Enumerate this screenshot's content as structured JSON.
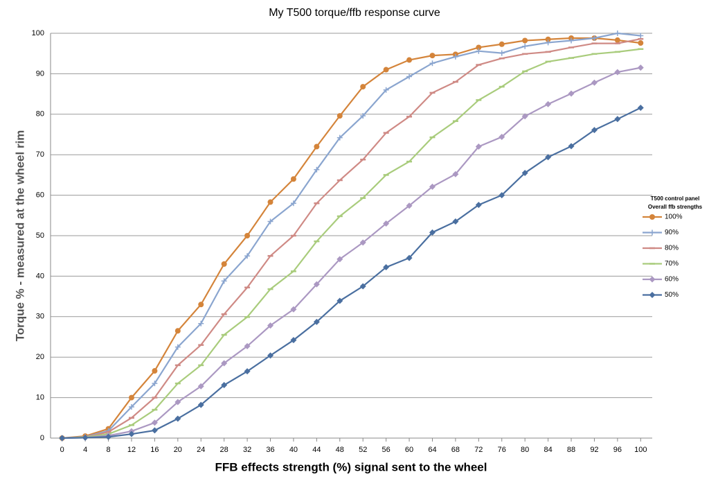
{
  "chart_data": {
    "type": "line",
    "title": "My T500 torque/ffb response curve",
    "x_label": "FFB effects strength (%) signal sent to the wheel",
    "y_label": "Torque % - measured at the wheel rim",
    "legend_title": [
      "T500 control panel",
      "Overall ffb strengths"
    ],
    "legend_position": "right",
    "x": [
      0,
      4,
      8,
      12,
      16,
      20,
      24,
      28,
      32,
      36,
      40,
      44,
      48,
      52,
      56,
      60,
      64,
      68,
      72,
      76,
      80,
      84,
      88,
      92,
      96,
      100
    ],
    "xlim": [
      -2,
      102
    ],
    "xticks": [
      0,
      4,
      8,
      12,
      16,
      20,
      24,
      28,
      32,
      36,
      40,
      44,
      48,
      52,
      56,
      60,
      64,
      68,
      72,
      76,
      80,
      84,
      88,
      92,
      96,
      100
    ],
    "ylim": [
      0,
      100
    ],
    "yticks": [
      0,
      10,
      20,
      30,
      40,
      50,
      60,
      70,
      80,
      90,
      100
    ],
    "grid": true,
    "series": [
      {
        "name": "100%",
        "color": "#d4843a",
        "marker": "circle",
        "values": [
          0,
          0.5,
          2.3,
          10,
          16.6,
          26.5,
          33,
          43,
          50,
          58.3,
          64,
          72,
          79.6,
          86.8,
          91,
          93.4,
          94.5,
          94.8,
          96.5,
          97.3,
          98.2,
          98.5,
          98.8,
          98.8,
          98.3,
          97.6
        ]
      },
      {
        "name": "90%",
        "color": "#8aa5cf",
        "marker": "plus",
        "values": [
          0,
          0.3,
          1.8,
          7.7,
          13.5,
          22.5,
          28.3,
          38.8,
          45,
          53.5,
          58,
          66.3,
          74.2,
          79.6,
          86,
          89.3,
          92.6,
          94.2,
          95.6,
          95.1,
          96.8,
          97.7,
          98.2,
          98.8,
          100,
          99.4
        ]
      },
      {
        "name": "80%",
        "color": "#cf8a85",
        "marker": "dash",
        "values": [
          0,
          0.2,
          1.5,
          5,
          10,
          18,
          23,
          30.6,
          37.2,
          45,
          50,
          58,
          63.7,
          68.8,
          75.4,
          79.4,
          85.3,
          88,
          92.2,
          93.8,
          94.9,
          95.4,
          96.5,
          97.5,
          97.5,
          98.6
        ]
      },
      {
        "name": "70%",
        "color": "#a9cc7c",
        "marker": "dash",
        "values": [
          0,
          0.2,
          1,
          3.2,
          7,
          13.5,
          18,
          25.5,
          29.9,
          36.8,
          41.2,
          48.6,
          54.8,
          59.3,
          65,
          68.3,
          74.3,
          78.3,
          83.5,
          86.8,
          90.6,
          93,
          93.9,
          94.9,
          95.4,
          96.1
        ]
      },
      {
        "name": "60%",
        "color": "#ab98c2",
        "marker": "diamond",
        "values": [
          0,
          0.1,
          0.6,
          1.7,
          3.8,
          8.9,
          12.8,
          18.5,
          22.7,
          27.8,
          31.8,
          38,
          44.2,
          48.3,
          53,
          57.4,
          62.1,
          65.2,
          72,
          74.4,
          79.5,
          82.5,
          85.1,
          87.8,
          90.4,
          91.5
        ]
      },
      {
        "name": "50%",
        "color": "#4a6fa0",
        "marker": "diamond",
        "values": [
          0,
          0.1,
          0.3,
          1,
          1.9,
          4.8,
          8.2,
          13.1,
          16.5,
          20.4,
          24.2,
          28.7,
          33.9,
          37.5,
          42.2,
          44.5,
          50.8,
          53.5,
          57.6,
          60,
          65.5,
          69.4,
          72.1,
          76.1,
          78.8,
          81.6
        ]
      }
    ]
  }
}
